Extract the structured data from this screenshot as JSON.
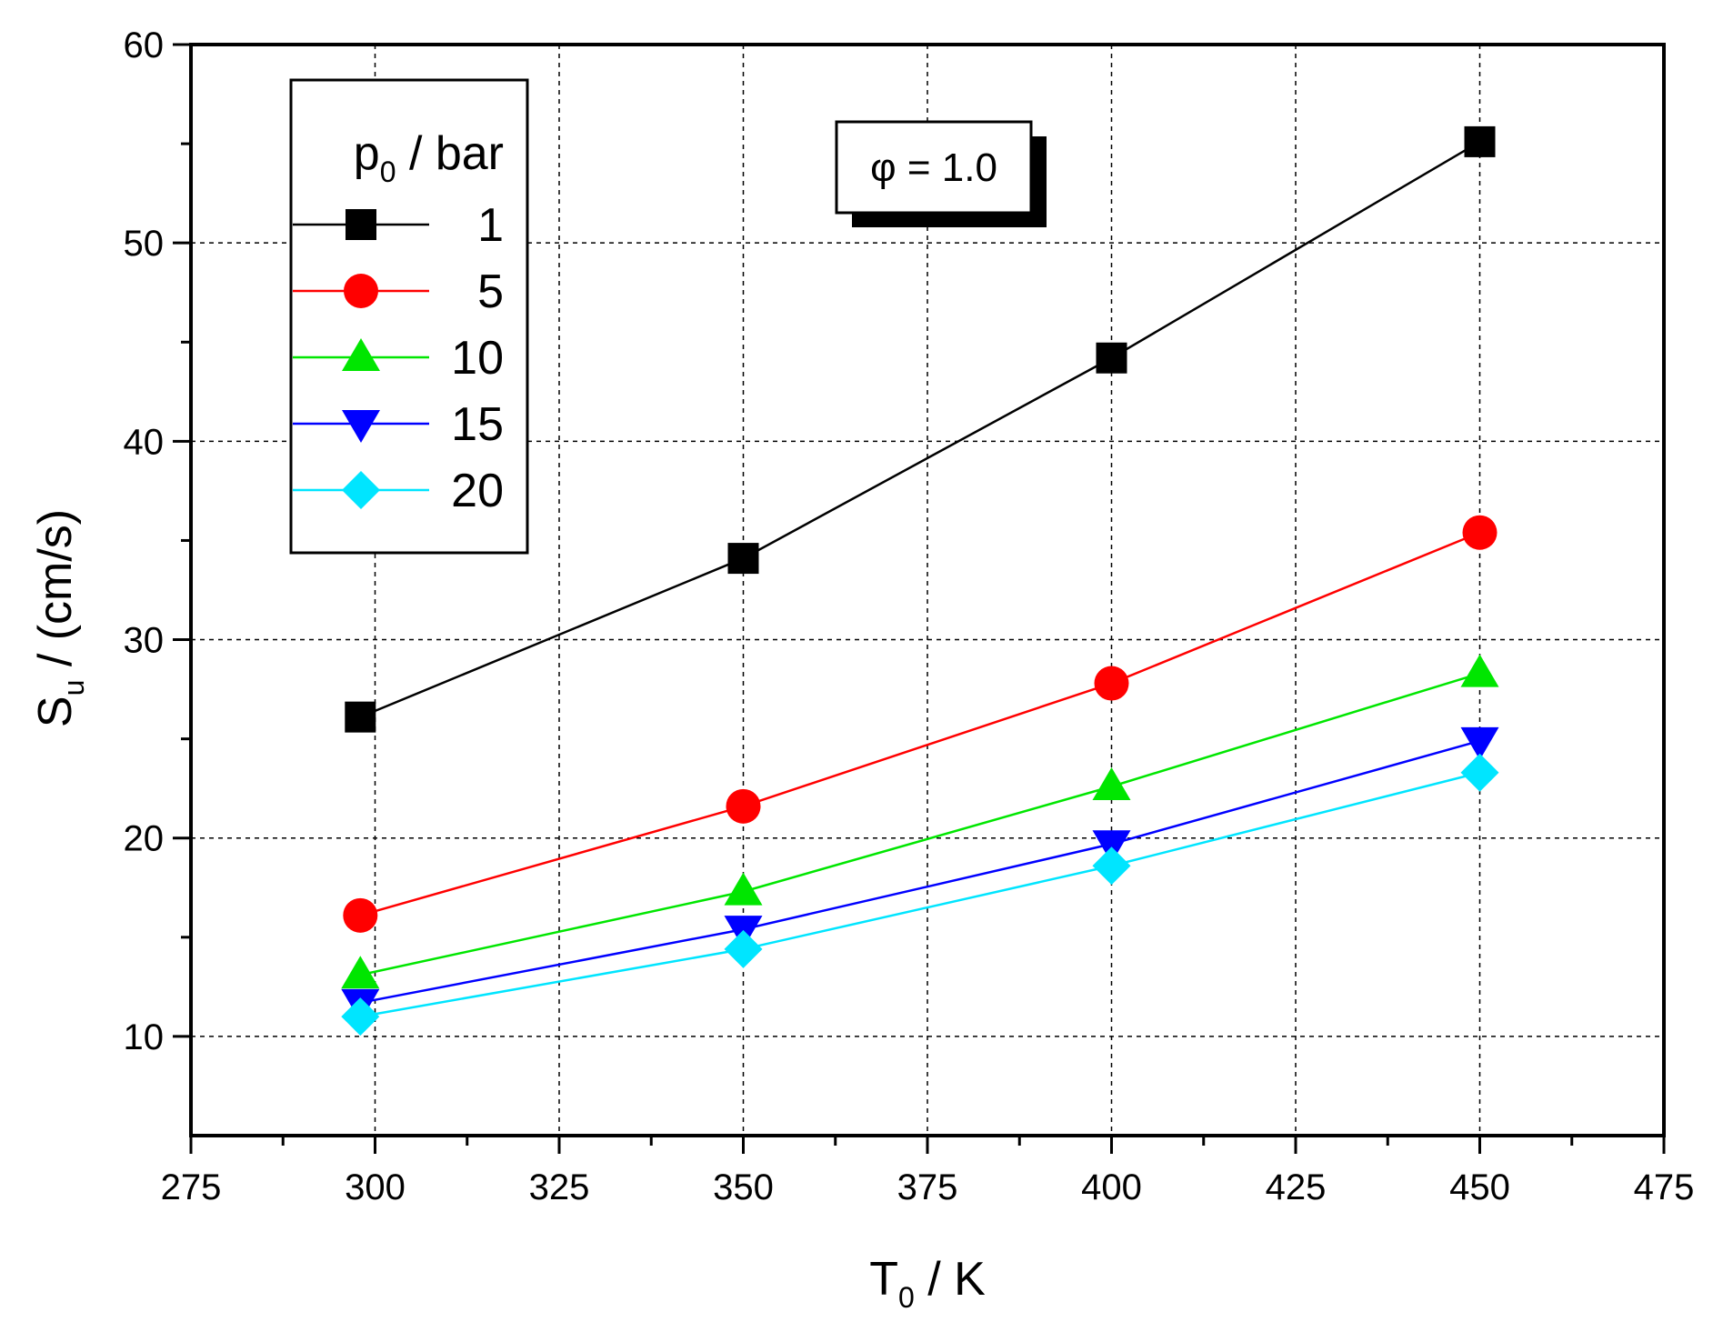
{
  "chart_data": {
    "type": "line",
    "title": "",
    "xlabel": {
      "main": "T",
      "sub": "0",
      "rest": " / K"
    },
    "ylabel": {
      "main": "S",
      "sub": "u",
      "rest": " / (cm/s)"
    },
    "xlim": [
      275,
      475
    ],
    "ylim": [
      5,
      60
    ],
    "xticks": [
      275,
      300,
      325,
      350,
      375,
      400,
      425,
      450,
      475
    ],
    "yticks": [
      10,
      20,
      30,
      40,
      50,
      60
    ],
    "grid": true,
    "legend": {
      "placement": "top-left",
      "title": {
        "main": "p",
        "sub": "0",
        "rest": " / bar"
      }
    },
    "annotation": "φ = 1.0",
    "x": [
      298,
      350,
      400,
      450
    ],
    "series": [
      {
        "name": "1",
        "marker": "square",
        "color": "#000000",
        "values": [
          26.1,
          34.1,
          44.2,
          55.1
        ]
      },
      {
        "name": "5",
        "marker": "circle",
        "color": "#ff0000",
        "values": [
          16.1,
          21.6,
          27.8,
          35.4
        ]
      },
      {
        "name": "10",
        "marker": "triangle-up",
        "color": "#00e600",
        "values": [
          13.1,
          17.3,
          22.6,
          28.3
        ]
      },
      {
        "name": "15",
        "marker": "triangle-down",
        "color": "#0000ff",
        "values": [
          11.7,
          15.4,
          19.7,
          24.9
        ]
      },
      {
        "name": "20",
        "marker": "diamond",
        "color": "#00e5ff",
        "values": [
          11.0,
          14.4,
          18.6,
          23.3
        ]
      }
    ]
  }
}
